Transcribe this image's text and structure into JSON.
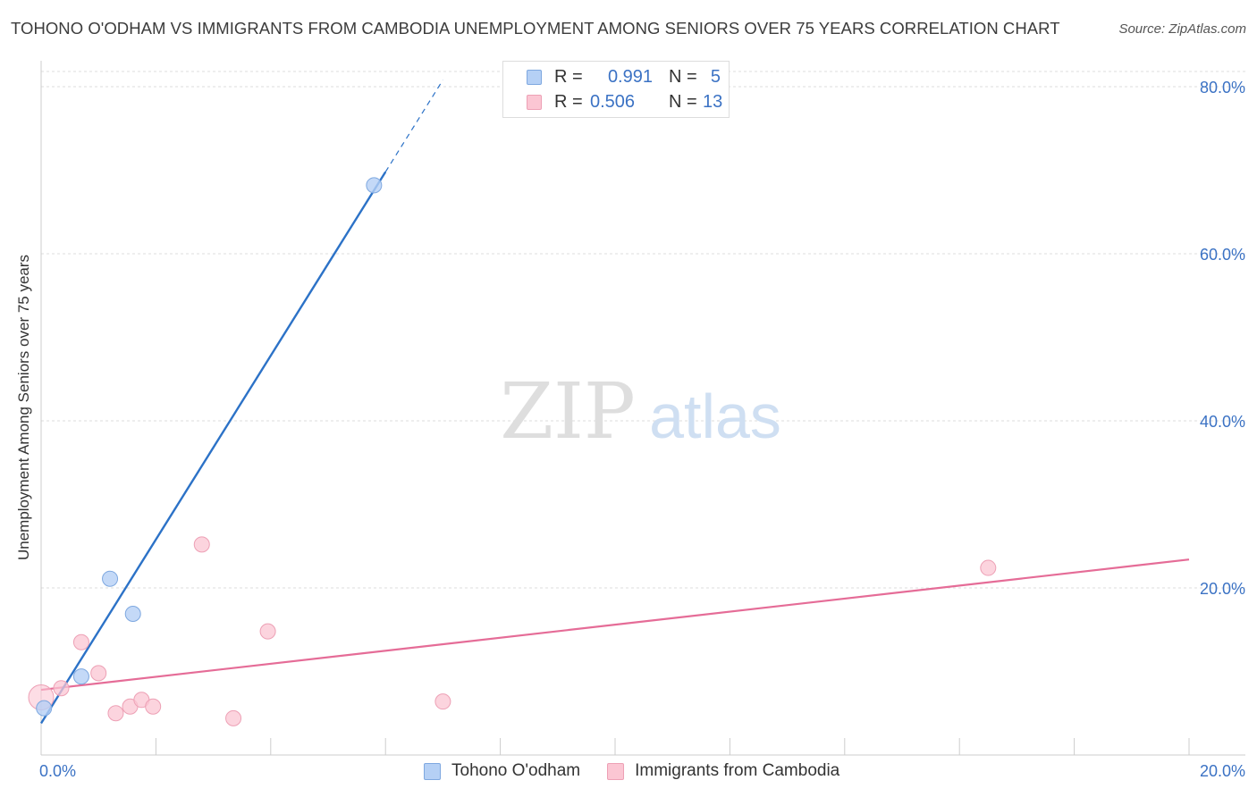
{
  "title": "TOHONO O'ODHAM VS IMMIGRANTS FROM CAMBODIA UNEMPLOYMENT AMONG SENIORS OVER 75 YEARS CORRELATION CHART",
  "source": "Source: ZipAtlas.com",
  "watermark": {
    "zip": "ZIP",
    "atlas": "atlas"
  },
  "legend_top": {
    "rows": [
      {
        "r_label": "R =",
        "r_value": "0.991",
        "n_label": "N =",
        "n_value": "5"
      },
      {
        "r_label": "R =",
        "r_value": "0.506",
        "n_label": "N =",
        "n_value": "13"
      }
    ]
  },
  "legend_bottom": {
    "series1": "Tohono O'odham",
    "series2": "Immigrants from Cambodia"
  },
  "chart_data": {
    "type": "scatter",
    "title": "TOHONO O'ODHAM VS IMMIGRANTS FROM CAMBODIA UNEMPLOYMENT AMONG SENIORS OVER 75 YEARS CORRELATION CHART",
    "xlabel": "",
    "ylabel": "Unemployment Among Seniors over 75 years",
    "xlim": [
      0,
      20
    ],
    "ylim": [
      0,
      80
    ],
    "x_tick_labels": [
      "0.0%",
      "20.0%"
    ],
    "y_ticks": [
      20,
      40,
      60,
      80
    ],
    "y_tick_labels": [
      "20.0%",
      "40.0%",
      "60.0%",
      "80.0%"
    ],
    "colors": {
      "series1": "#2c72c7",
      "series1_fill": "#b5d0f5",
      "series2": "#e56c97",
      "series2_fill": "#fbc6d3",
      "tick": "#3b72c4"
    },
    "series": [
      {
        "name": "Tohono O'odham",
        "points": [
          [
            0.05,
            5.6
          ],
          [
            0.7,
            9.4
          ],
          [
            1.2,
            21.1
          ],
          [
            1.6,
            16.9
          ],
          [
            5.8,
            68.2
          ]
        ],
        "trend": {
          "x0": 0.0,
          "y0": 3.8,
          "x1": 6.0,
          "y1": 69.8,
          "dash_x1": 7.0,
          "dash_y1": 80.8
        }
      },
      {
        "name": "Immigrants from Cambodia",
        "points": [
          [
            0.0,
            6.9
          ],
          [
            0.35,
            8.0
          ],
          [
            0.7,
            13.5
          ],
          [
            1.0,
            9.8
          ],
          [
            1.3,
            5.0
          ],
          [
            1.55,
            5.8
          ],
          [
            1.75,
            6.6
          ],
          [
            1.95,
            5.8
          ],
          [
            2.8,
            25.2
          ],
          [
            3.35,
            4.4
          ],
          [
            3.95,
            14.8
          ],
          [
            7.0,
            6.4
          ],
          [
            16.5,
            22.4
          ]
        ],
        "trend": {
          "x0": 0.0,
          "y0": 7.8,
          "x1": 20.0,
          "y1": 23.4
        }
      }
    ]
  }
}
